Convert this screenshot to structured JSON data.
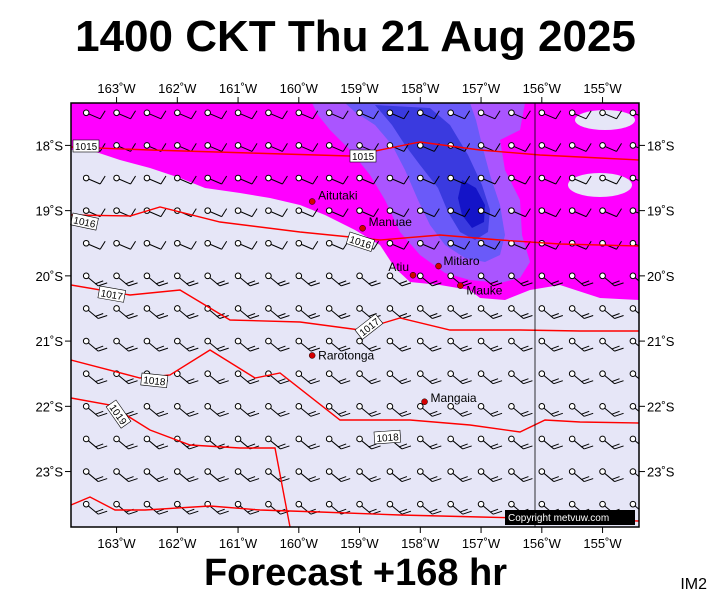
{
  "title": "1400 CKT Thu 21 Aug 2025",
  "footer": "Forecast +168 hr",
  "product_code": "IM2",
  "copyright": "Copyright metvuw.com",
  "colors": {
    "background": "#e6e6f7",
    "rain_light": "#ff00ff",
    "rain_medium": "#aa55ff",
    "rain_heavy": "#6a5af9",
    "rain_heavier": "#3a3adf",
    "rain_extreme": "#1414c8",
    "isobar": "#ff0000",
    "land_marker": "#d40000"
  },
  "longitudes": [
    {
      "lon": -163,
      "label": "163˚W"
    },
    {
      "lon": -162,
      "label": "162˚W"
    },
    {
      "lon": -161,
      "label": "161˚W"
    },
    {
      "lon": -160,
      "label": "160˚W"
    },
    {
      "lon": -159,
      "label": "159˚W"
    },
    {
      "lon": -158,
      "label": "158˚W"
    },
    {
      "lon": -157,
      "label": "157˚W"
    },
    {
      "lon": -156,
      "label": "156˚W"
    },
    {
      "lon": -155,
      "label": "155˚W"
    }
  ],
  "latitudes": [
    {
      "lat": -18,
      "label": "18˚S"
    },
    {
      "lat": -19,
      "label": "19˚S"
    },
    {
      "lat": -20,
      "label": "20˚S"
    },
    {
      "lat": -21,
      "label": "21˚S"
    },
    {
      "lat": -22,
      "label": "22˚S"
    },
    {
      "lat": -23,
      "label": "23˚S"
    }
  ],
  "places": [
    {
      "name": "Aitutaki",
      "lon": -159.78,
      "lat": -18.86
    },
    {
      "name": "Manuae",
      "lon": -158.95,
      "lat": -19.27
    },
    {
      "name": "Atiu",
      "lon": -158.12,
      "lat": -19.99
    },
    {
      "name": "Mitiaro",
      "lon": -157.7,
      "lat": -19.85
    },
    {
      "name": "Mauke",
      "lon": -157.34,
      "lat": -20.15
    },
    {
      "name": "Rarotonga",
      "lon": -159.78,
      "lat": -21.22
    },
    {
      "name": "Mangaia",
      "lon": -157.93,
      "lat": -21.93
    }
  ],
  "isobar_labels": [
    "1015",
    "1015",
    "1016",
    "1016",
    "1017",
    "1017",
    "1018",
    "1018",
    "1019"
  ],
  "chart_data": {
    "type": "map",
    "region_lon": [
      -163.75,
      -154.4
    ],
    "region_lat": [
      -17.35,
      -23.85
    ],
    "wind_grid_lon_step": 0.5,
    "wind_grid_lat_step": 0.5,
    "isobars_hpa": [
      1015,
      1016,
      1017,
      1018,
      1019
    ]
  }
}
